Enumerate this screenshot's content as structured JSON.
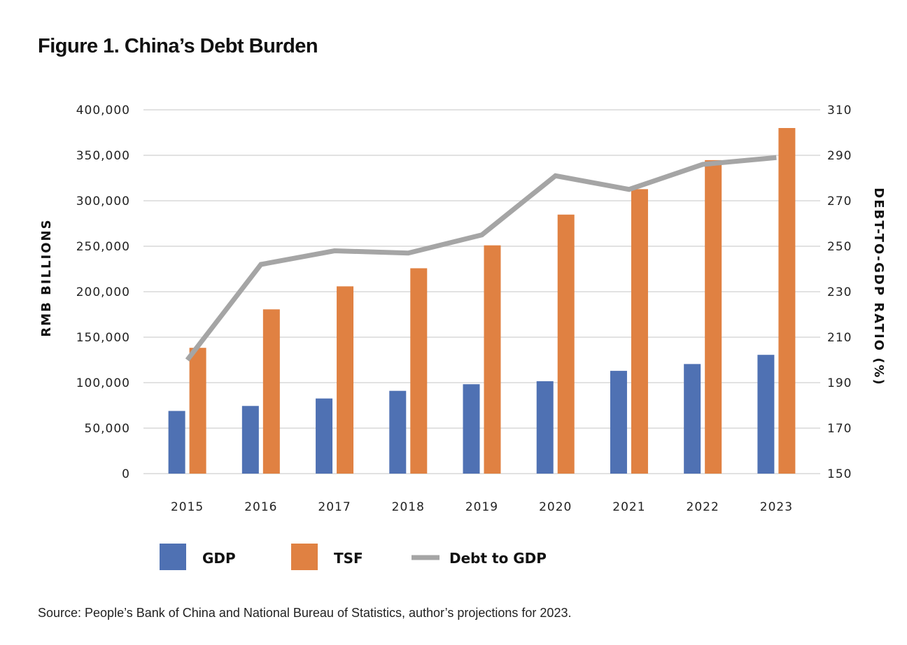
{
  "chart_data": {
    "type": "bar",
    "title": "Figure 1. China’s Debt Burden",
    "categories": [
      "2015",
      "2016",
      "2017",
      "2018",
      "2019",
      "2020",
      "2021",
      "2022",
      "2023"
    ],
    "series": [
      {
        "name": "GDP",
        "type": "bar",
        "axis": "left",
        "color": "#4F71B3",
        "values": [
          68900,
          74400,
          82600,
          91000,
          98300,
          101600,
          113000,
          120500,
          130600
        ]
      },
      {
        "name": "TSF",
        "type": "bar",
        "axis": "left",
        "color": "#E08142",
        "values": [
          138300,
          180600,
          205900,
          225800,
          251000,
          284800,
          312800,
          344700,
          380000
        ]
      },
      {
        "name": "Debt to GDP",
        "type": "line",
        "axis": "right",
        "color": "#A5A5A5",
        "values": [
          200,
          242,
          248,
          247,
          255,
          281,
          275,
          286,
          289
        ]
      }
    ],
    "ylabel": "RMB BILLIONS",
    "y2label": "DEBT-TO-GDP RATIO (%)",
    "ylim": [
      0,
      400000
    ],
    "y2lim": [
      150,
      310
    ],
    "yticks": [
      "0",
      "50,000",
      "100,000",
      "150,000",
      "200,000",
      "250,000",
      "300,000",
      "350,000",
      "400,000"
    ],
    "y2ticks": [
      "150",
      "170",
      "190",
      "210",
      "230",
      "250",
      "270",
      "290",
      "310"
    ],
    "grid": true,
    "legend": "bottom",
    "source": "Source: People’s Bank of China and National Bureau of Statistics, author’s projections for 2023."
  }
}
